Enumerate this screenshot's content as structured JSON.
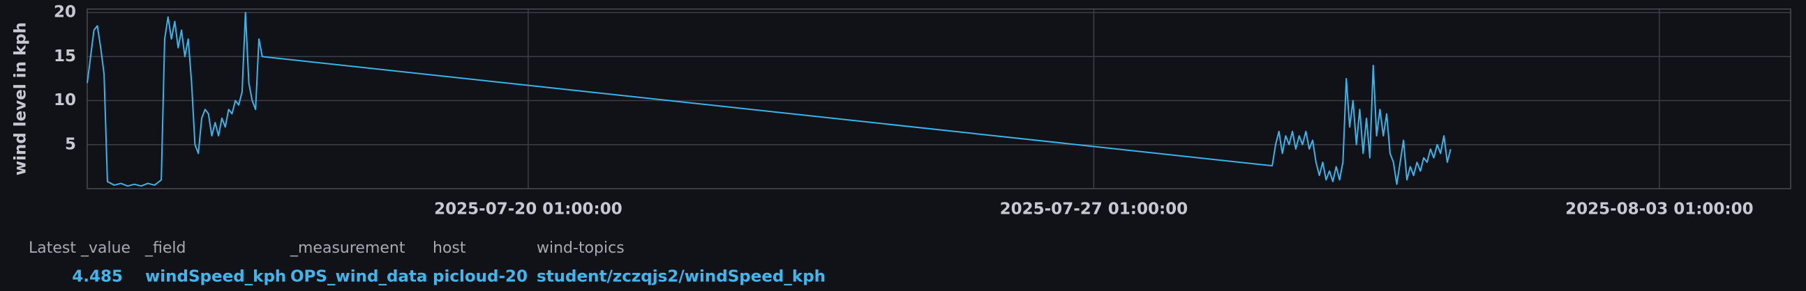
{
  "chart_data": {
    "type": "line",
    "ylabel": "wind level in kph",
    "color": "#3ab5ec",
    "grid": true,
    "ylim": [
      0,
      20.4
    ],
    "yticks": [
      5,
      10,
      15,
      20
    ],
    "xlim": [
      "2025-07-14 14:00:00",
      "2025-08-04 16:00:00"
    ],
    "xticks": [
      "2025-07-20 01:00:00",
      "2025-07-27 01:00:00",
      "2025-08-03 01:00:00"
    ],
    "x": [
      "2025-07-14 14:00:00",
      "2025-07-14 15:00:00",
      "2025-07-14 16:00:00",
      "2025-07-14 17:00:00",
      "2025-07-14 18:00:00",
      "2025-07-14 19:00:00",
      "2025-07-14 20:00:00",
      "2025-07-14 22:00:00",
      "2025-07-15 00:00:00",
      "2025-07-15 02:00:00",
      "2025-07-15 04:00:00",
      "2025-07-15 06:00:00",
      "2025-07-15 08:00:00",
      "2025-07-15 10:00:00",
      "2025-07-15 12:00:00",
      "2025-07-15 13:00:00",
      "2025-07-15 14:00:00",
      "2025-07-15 15:00:00",
      "2025-07-15 16:00:00",
      "2025-07-15 17:00:00",
      "2025-07-15 18:00:00",
      "2025-07-15 19:00:00",
      "2025-07-15 20:00:00",
      "2025-07-15 21:00:00",
      "2025-07-15 22:00:00",
      "2025-07-15 23:00:00",
      "2025-07-16 00:00:00",
      "2025-07-16 01:00:00",
      "2025-07-16 02:00:00",
      "2025-07-16 03:00:00",
      "2025-07-16 04:00:00",
      "2025-07-16 05:00:00",
      "2025-07-16 06:00:00",
      "2025-07-16 07:00:00",
      "2025-07-16 08:00:00",
      "2025-07-16 09:00:00",
      "2025-07-16 10:00:00",
      "2025-07-16 11:00:00",
      "2025-07-16 12:00:00",
      "2025-07-16 13:00:00",
      "2025-07-16 14:00:00",
      "2025-07-16 15:00:00",
      "2025-07-16 16:00:00",
      "2025-07-16 17:00:00",
      "2025-07-16 18:00:00",
      "2025-07-29 06:00:00",
      "2025-07-29 07:00:00",
      "2025-07-29 08:00:00",
      "2025-07-29 09:00:00",
      "2025-07-29 10:00:00",
      "2025-07-29 11:00:00",
      "2025-07-29 12:00:00",
      "2025-07-29 13:00:00",
      "2025-07-29 14:00:00",
      "2025-07-29 15:00:00",
      "2025-07-29 16:00:00",
      "2025-07-29 17:00:00",
      "2025-07-29 18:00:00",
      "2025-07-29 19:00:00",
      "2025-07-29 20:00:00",
      "2025-07-29 21:00:00",
      "2025-07-29 22:00:00",
      "2025-07-29 23:00:00",
      "2025-07-30 00:00:00",
      "2025-07-30 01:00:00",
      "2025-07-30 02:00:00",
      "2025-07-30 03:00:00",
      "2025-07-30 04:00:00",
      "2025-07-30 05:00:00",
      "2025-07-30 06:00:00",
      "2025-07-30 07:00:00",
      "2025-07-30 08:00:00",
      "2025-07-30 09:00:00",
      "2025-07-30 10:00:00",
      "2025-07-30 11:00:00",
      "2025-07-30 12:00:00",
      "2025-07-30 13:00:00",
      "2025-07-30 14:00:00",
      "2025-07-30 15:00:00",
      "2025-07-30 16:00:00",
      "2025-07-30 17:00:00",
      "2025-07-30 18:00:00",
      "2025-07-30 19:00:00",
      "2025-07-30 20:00:00",
      "2025-07-30 21:00:00",
      "2025-07-30 22:00:00",
      "2025-07-30 23:00:00",
      "2025-07-31 00:00:00",
      "2025-07-31 01:00:00",
      "2025-07-31 02:00:00",
      "2025-07-31 03:00:00",
      "2025-07-31 04:00:00",
      "2025-07-31 05:00:00",
      "2025-07-31 06:00:00",
      "2025-07-31 07:00:00",
      "2025-07-31 08:00:00",
      "2025-07-31 09:00:00",
      "2025-07-31 10:00:00",
      "2025-07-31 11:00:00"
    ],
    "values": [
      12,
      15,
      18,
      18.5,
      16,
      13,
      0.8,
      0.4,
      0.6,
      0.3,
      0.5,
      0.3,
      0.6,
      0.4,
      1,
      17,
      19.5,
      17,
      19,
      16,
      18,
      15,
      17,
      12,
      5,
      4,
      8,
      9,
      8.5,
      6,
      7.5,
      6,
      8,
      7,
      9,
      8.5,
      10,
      9.5,
      11,
      20,
      12,
      10,
      9,
      17,
      15,
      2.6,
      5,
      6.5,
      4,
      6,
      5,
      6.5,
      4.5,
      6,
      5,
      6.5,
      4.5,
      5.5,
      3,
      1.5,
      3,
      1,
      2,
      0.8,
      2.5,
      1,
      3,
      12.5,
      7,
      10,
      5,
      9,
      4,
      8,
      3.5,
      14,
      6,
      9,
      6,
      8.5,
      4,
      3,
      0.5,
      3,
      5.5,
      1,
      2.5,
      1.5,
      3,
      2,
      3.5,
      3,
      4.5,
      3.5,
      5,
      4,
      6,
      3,
      4.485
    ]
  },
  "legend": {
    "headers": [
      "Latest _value",
      "_field",
      "_measurement",
      "host",
      "wind-topics"
    ],
    "values": [
      "4.485",
      "windSpeed_kph",
      "OPS_wind_data",
      "picloud-20",
      "student/zczqjs2/windSpeed_kph"
    ]
  }
}
